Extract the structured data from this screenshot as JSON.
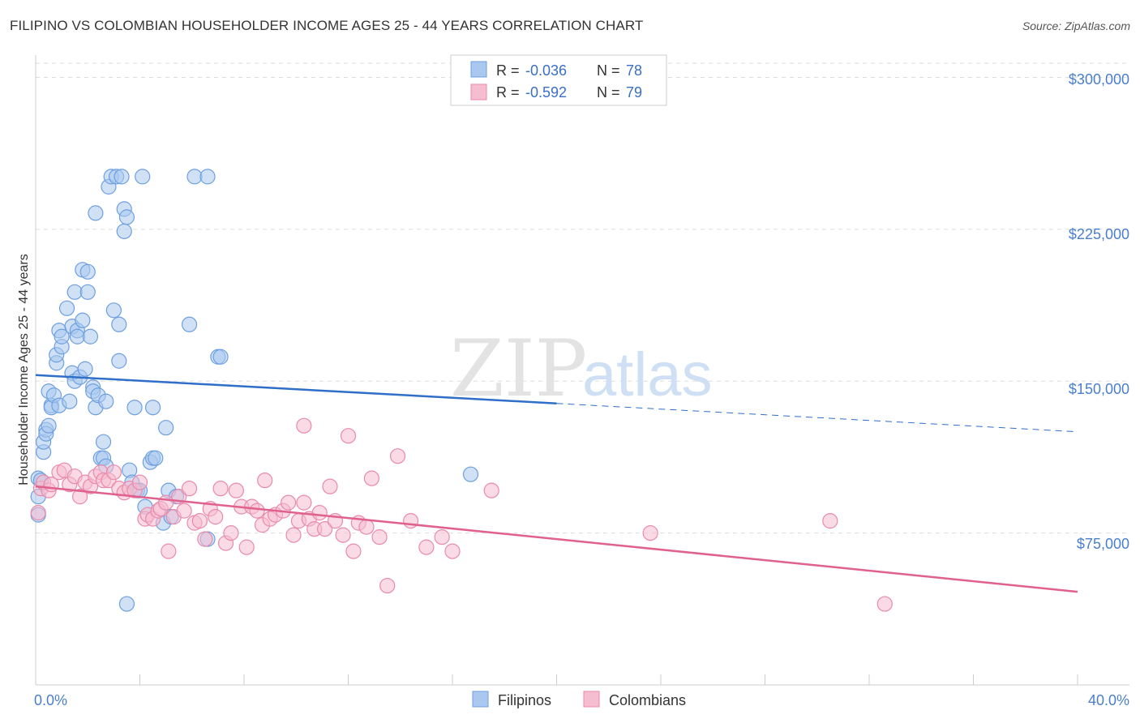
{
  "title": "FILIPINO VS COLOMBIAN HOUSEHOLDER INCOME AGES 25 - 44 YEARS CORRELATION CHART",
  "source": "Source: ZipAtlas.com",
  "watermark": {
    "zip": "ZIP",
    "atlas": "atlas"
  },
  "colors": {
    "filipino_fill": "#aac8ef",
    "filipino_stroke": "#6d9fe0",
    "filipino_line": "#2f6fc8",
    "colombian_fill": "#f6bcd0",
    "colombian_stroke": "#e88aab",
    "colombian_line": "#e0608e",
    "tick_label": "#4a7fcb",
    "grid": "#dddddd"
  },
  "legend": {
    "rows": [
      {
        "r_label": "R =",
        "r_value": "-0.036",
        "n_label": "N =",
        "n_value": "78"
      },
      {
        "r_label": "R =",
        "r_value": "-0.592",
        "n_label": "N =",
        "n_value": "79"
      }
    ]
  },
  "bottom_legend": [
    "Filipinos",
    "Colombians"
  ],
  "chart_data": {
    "type": "scatter",
    "title": "FILIPINO VS COLOMBIAN HOUSEHOLDER INCOME AGES 25 - 44 YEARS CORRELATION CHART",
    "xlabel": "",
    "ylabel": "Householder Income Ages 25 - 44 years",
    "xlim": [
      0,
      40
    ],
    "ylim": [
      0,
      315000
    ],
    "x_tick_labels": [
      "0.0%",
      "40.0%"
    ],
    "y_ticks": [
      75000,
      150000,
      225000,
      300000
    ],
    "y_tick_labels": [
      "$75,000",
      "$150,000",
      "$225,000",
      "$300,000"
    ],
    "grid": true,
    "legend_position": "top-center",
    "series": [
      {
        "name": "Filipinos",
        "R": -0.036,
        "N": 78,
        "trend": {
          "x": [
            0,
            20
          ],
          "y": [
            153000,
            139000
          ],
          "dashed_to": [
            40,
            125000
          ]
        },
        "points": [
          [
            0.1,
            102000
          ],
          [
            0.1,
            93000
          ],
          [
            0.1,
            84000
          ],
          [
            0.2,
            101000
          ],
          [
            0.3,
            115000
          ],
          [
            0.3,
            120000
          ],
          [
            0.4,
            126000
          ],
          [
            0.4,
            124000
          ],
          [
            0.5,
            128000
          ],
          [
            0.5,
            145000
          ],
          [
            0.6,
            138000
          ],
          [
            0.6,
            137000
          ],
          [
            0.7,
            143000
          ],
          [
            0.8,
            159000
          ],
          [
            0.8,
            163000
          ],
          [
            0.9,
            175000
          ],
          [
            0.9,
            138000
          ],
          [
            1.0,
            167000
          ],
          [
            1.0,
            172000
          ],
          [
            1.2,
            186000
          ],
          [
            1.3,
            140000
          ],
          [
            1.4,
            177000
          ],
          [
            1.4,
            154000
          ],
          [
            1.5,
            194000
          ],
          [
            1.5,
            150000
          ],
          [
            1.6,
            175000
          ],
          [
            1.6,
            172000
          ],
          [
            1.7,
            152000
          ],
          [
            1.8,
            180000
          ],
          [
            1.8,
            205000
          ],
          [
            1.9,
            156000
          ],
          [
            2.0,
            194000
          ],
          [
            2.0,
            204000
          ],
          [
            2.1,
            172000
          ],
          [
            2.2,
            147000
          ],
          [
            2.2,
            145000
          ],
          [
            2.3,
            233000
          ],
          [
            2.3,
            137000
          ],
          [
            2.4,
            143000
          ],
          [
            2.5,
            112000
          ],
          [
            2.6,
            120000
          ],
          [
            2.6,
            112000
          ],
          [
            2.7,
            140000
          ],
          [
            2.7,
            108000
          ],
          [
            2.8,
            246000
          ],
          [
            2.9,
            251000
          ],
          [
            3.0,
            185000
          ],
          [
            3.1,
            251000
          ],
          [
            3.2,
            160000
          ],
          [
            3.2,
            178000
          ],
          [
            3.3,
            251000
          ],
          [
            3.4,
            224000
          ],
          [
            3.4,
            235000
          ],
          [
            3.5,
            231000
          ],
          [
            3.5,
            40000
          ],
          [
            3.6,
            106000
          ],
          [
            3.7,
            100000
          ],
          [
            3.8,
            137000
          ],
          [
            3.9,
            96000
          ],
          [
            4.0,
            96000
          ],
          [
            4.1,
            251000
          ],
          [
            4.2,
            88000
          ],
          [
            4.4,
            110000
          ],
          [
            4.5,
            137000
          ],
          [
            4.5,
            112000
          ],
          [
            4.6,
            112000
          ],
          [
            4.9,
            80000
          ],
          [
            5.0,
            127000
          ],
          [
            5.1,
            96000
          ],
          [
            5.2,
            83000
          ],
          [
            5.4,
            93000
          ],
          [
            5.9,
            178000
          ],
          [
            6.1,
            251000
          ],
          [
            6.6,
            251000
          ],
          [
            6.6,
            72000
          ],
          [
            7.0,
            162000
          ],
          [
            7.1,
            162000
          ],
          [
            16.7,
            104000
          ]
        ]
      },
      {
        "name": "Colombians",
        "R": -0.592,
        "N": 79,
        "trend": {
          "x": [
            0,
            40
          ],
          "y": [
            98000,
            46000
          ]
        },
        "points": [
          [
            0.1,
            85000
          ],
          [
            0.2,
            97000
          ],
          [
            0.3,
            100000
          ],
          [
            0.5,
            96000
          ],
          [
            0.6,
            99000
          ],
          [
            0.9,
            105000
          ],
          [
            1.1,
            106000
          ],
          [
            1.3,
            99000
          ],
          [
            1.5,
            103000
          ],
          [
            1.7,
            93000
          ],
          [
            1.9,
            100000
          ],
          [
            2.1,
            98000
          ],
          [
            2.3,
            103000
          ],
          [
            2.5,
            105000
          ],
          [
            2.6,
            101000
          ],
          [
            2.8,
            101000
          ],
          [
            3.0,
            105000
          ],
          [
            3.2,
            97000
          ],
          [
            3.4,
            95000
          ],
          [
            3.6,
            97000
          ],
          [
            3.8,
            96000
          ],
          [
            4.0,
            100000
          ],
          [
            4.2,
            82000
          ],
          [
            4.3,
            84000
          ],
          [
            4.5,
            82000
          ],
          [
            4.7,
            86000
          ],
          [
            4.8,
            87000
          ],
          [
            5.0,
            90000
          ],
          [
            5.1,
            66000
          ],
          [
            5.3,
            83000
          ],
          [
            5.5,
            93000
          ],
          [
            5.7,
            86000
          ],
          [
            5.9,
            97000
          ],
          [
            6.1,
            80000
          ],
          [
            6.3,
            81000
          ],
          [
            6.5,
            72000
          ],
          [
            6.7,
            87000
          ],
          [
            6.9,
            83000
          ],
          [
            7.1,
            97000
          ],
          [
            7.3,
            70000
          ],
          [
            7.5,
            75000
          ],
          [
            7.7,
            96000
          ],
          [
            7.9,
            88000
          ],
          [
            8.1,
            68000
          ],
          [
            8.3,
            88000
          ],
          [
            8.5,
            86000
          ],
          [
            8.7,
            79000
          ],
          [
            8.8,
            101000
          ],
          [
            9.0,
            82000
          ],
          [
            9.2,
            84000
          ],
          [
            9.5,
            86000
          ],
          [
            9.7,
            90000
          ],
          [
            9.9,
            74000
          ],
          [
            10.1,
            81000
          ],
          [
            10.3,
            90000
          ],
          [
            10.3,
            128000
          ],
          [
            10.5,
            82000
          ],
          [
            10.7,
            77000
          ],
          [
            10.9,
            85000
          ],
          [
            11.1,
            77000
          ],
          [
            11.3,
            98000
          ],
          [
            11.5,
            81000
          ],
          [
            11.8,
            74000
          ],
          [
            12.0,
            123000
          ],
          [
            12.2,
            66000
          ],
          [
            12.4,
            80000
          ],
          [
            12.7,
            78000
          ],
          [
            12.9,
            102000
          ],
          [
            13.2,
            73000
          ],
          [
            13.5,
            49000
          ],
          [
            13.9,
            113000
          ],
          [
            14.4,
            81000
          ],
          [
            15.0,
            68000
          ],
          [
            15.6,
            73000
          ],
          [
            16.0,
            66000
          ],
          [
            17.5,
            96000
          ],
          [
            23.6,
            75000
          ],
          [
            30.5,
            81000
          ],
          [
            32.6,
            40000
          ]
        ]
      }
    ]
  }
}
